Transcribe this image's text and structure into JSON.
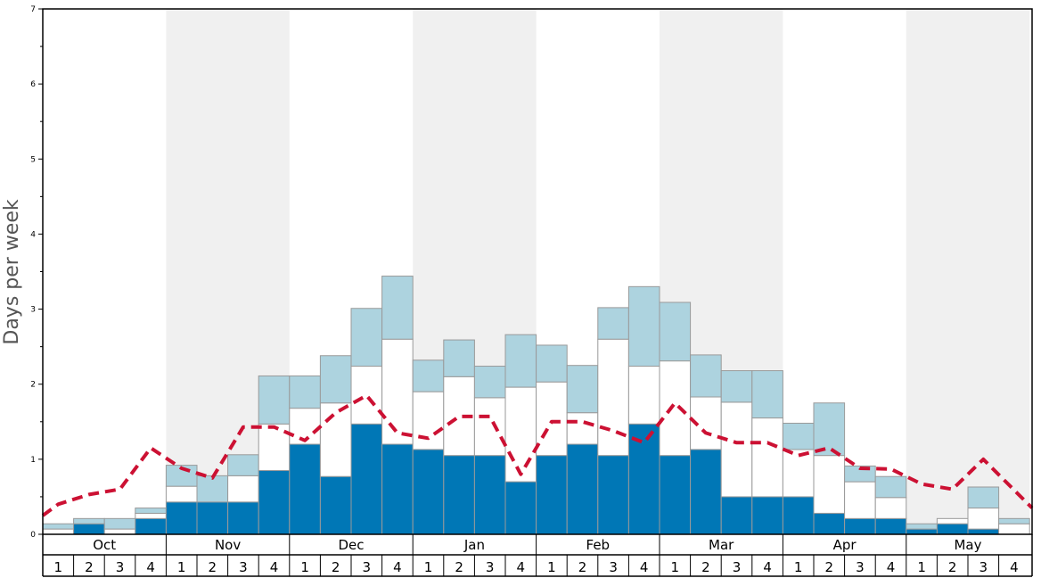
{
  "chart_data": {
    "type": "bar",
    "ylabel": "Days per week",
    "ylim": [
      0,
      7
    ],
    "yticks": [
      "0",
      "1",
      "2",
      "3",
      "4",
      "5",
      "6",
      "7"
    ],
    "months": [
      "Oct",
      "Nov",
      "Dec",
      "Jan",
      "Feb",
      "Mar",
      "Apr",
      "May"
    ],
    "weeks": [
      "1",
      "2",
      "3",
      "4"
    ],
    "shaded_months": [
      "Nov",
      "Jan",
      "Mar",
      "May"
    ],
    "stack_colors": [
      "#0077b6",
      "#ffffff",
      "#add3df"
    ],
    "line_color": "#cc1133",
    "series": [
      {
        "values": [
          0.0,
          0.14,
          0.0,
          0.21,
          0.43,
          0.43,
          0.43,
          0.85,
          1.2,
          0.77,
          1.47,
          1.2,
          1.13,
          1.05,
          1.05,
          0.7,
          1.05,
          1.2,
          1.05,
          1.47,
          1.05,
          1.13,
          0.5,
          0.5,
          0.5,
          0.28,
          0.21,
          0.21,
          0.07,
          0.14,
          0.07,
          0.0
        ]
      },
      {
        "values": [
          0.07,
          0.0,
          0.07,
          0.07,
          0.21,
          0.0,
          0.35,
          0.62,
          0.48,
          0.98,
          0.77,
          1.4,
          0.77,
          1.05,
          0.77,
          1.26,
          0.98,
          0.42,
          1.55,
          0.77,
          1.26,
          0.7,
          1.26,
          1.05,
          0.63,
          0.77,
          0.49,
          0.28,
          0.0,
          0.07,
          0.28,
          0.14
        ]
      },
      {
        "values": [
          0.07,
          0.07,
          0.14,
          0.07,
          0.28,
          0.35,
          0.28,
          0.64,
          0.43,
          0.63,
          0.77,
          0.84,
          0.42,
          0.49,
          0.42,
          0.7,
          0.49,
          0.63,
          0.42,
          1.06,
          0.78,
          0.56,
          0.42,
          0.63,
          0.35,
          0.7,
          0.21,
          0.28,
          0.07,
          0.0,
          0.28,
          0.07
        ]
      },
      {
        "type": "line",
        "style": "dashed",
        "values": [
          0.25,
          0.4,
          0.53,
          0.6,
          1.15,
          0.88,
          0.75,
          1.43,
          1.43,
          1.25,
          1.62,
          1.85,
          1.35,
          1.28,
          1.57,
          1.57,
          0.8,
          1.5,
          1.5,
          1.38,
          1.22,
          1.75,
          1.35,
          1.22,
          1.22,
          1.05,
          1.15,
          0.88,
          0.87,
          0.67,
          0.6,
          1.0,
          0.35
        ]
      }
    ]
  }
}
